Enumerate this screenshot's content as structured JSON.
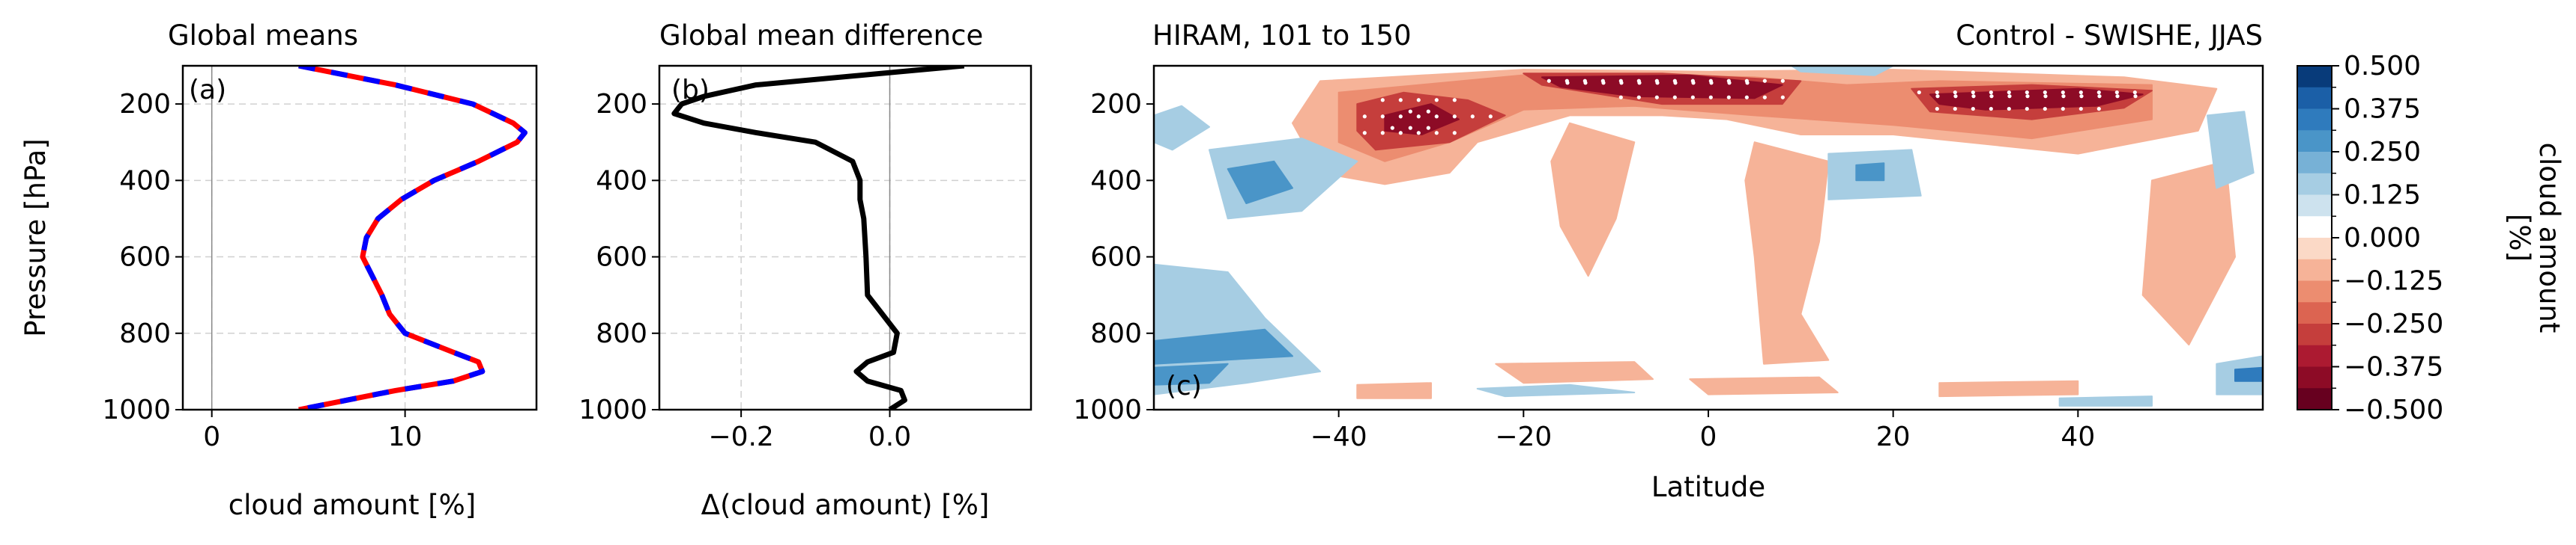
{
  "chart_data": [
    {
      "panel": "(a)",
      "type": "line",
      "title": "Global means",
      "xlabel": "cloud amount [%]",
      "ylabel": "Pressure [hPa]",
      "xlim": [
        -1.5,
        16.8
      ],
      "ylim": [
        1000,
        100
      ],
      "xticks": [
        "0",
        "10"
      ],
      "xtick_values": [
        0,
        10
      ],
      "yticks": [
        "200",
        "400",
        "600",
        "800",
        "1000"
      ],
      "ytick_values": [
        200,
        400,
        600,
        800,
        1000
      ],
      "grid": true,
      "y": [
        100,
        150,
        200,
        250,
        275,
        300,
        350,
        400,
        450,
        500,
        550,
        600,
        650,
        700,
        750,
        800,
        850,
        875,
        900,
        925,
        950,
        975,
        1000
      ],
      "series": [
        {
          "color": "#ff0000",
          "style": "solid",
          "x": [
            4.5,
            9.5,
            13.5,
            15.6,
            16.2,
            15.8,
            13.8,
            11.5,
            9.8,
            8.6,
            8.0,
            7.8,
            8.3,
            8.8,
            9.2,
            10.0,
            12.5,
            13.8,
            14.0,
            12.5,
            9.5,
            7.0,
            4.5
          ]
        },
        {
          "color": "#0000ff",
          "style": "dashed",
          "x": [
            4.5,
            9.5,
            13.5,
            15.6,
            16.2,
            15.8,
            13.8,
            11.5,
            9.8,
            8.6,
            8.0,
            7.8,
            8.3,
            8.8,
            9.2,
            10.0,
            12.5,
            13.8,
            14.0,
            12.5,
            9.5,
            7.0,
            4.5
          ]
        }
      ]
    },
    {
      "panel": "(b)",
      "type": "line",
      "title": "Global mean difference",
      "xlabel": "Δ(cloud amount) [%]",
      "ylabel": "",
      "xlim": [
        -0.31,
        0.19
      ],
      "ylim": [
        1000,
        100
      ],
      "xticks": [
        "−0.2",
        "0.0"
      ],
      "xtick_values": [
        -0.2,
        0.0
      ],
      "yticks": [
        "200",
        "400",
        "600",
        "800",
        "1000"
      ],
      "ytick_values": [
        200,
        400,
        600,
        800,
        1000
      ],
      "grid": true,
      "y": [
        100,
        150,
        180,
        200,
        225,
        250,
        275,
        300,
        350,
        400,
        450,
        500,
        600,
        700,
        750,
        800,
        850,
        875,
        900,
        925,
        950,
        975,
        1000
      ],
      "series": [
        {
          "color": "#000000",
          "style": "solid",
          "x": [
            0.1,
            -0.18,
            -0.25,
            -0.28,
            -0.29,
            -0.25,
            -0.18,
            -0.1,
            -0.05,
            -0.04,
            -0.04,
            -0.035,
            -0.032,
            -0.03,
            -0.01,
            0.01,
            0.005,
            -0.03,
            -0.045,
            -0.03,
            0.015,
            0.02,
            0.0
          ]
        }
      ]
    },
    {
      "panel": "(c)",
      "type": "heatmap",
      "title": "HIRAM, 101 to 150",
      "subtitle": "Control - SWISHE, JJAS",
      "xlabel": "Latitude",
      "ylabel": "",
      "xlim": [
        -60,
        60
      ],
      "ylim": [
        1000,
        100
      ],
      "xticks": [
        "−40",
        "−20",
        "0",
        "20",
        "40"
      ],
      "xtick_values": [
        -40,
        -20,
        0,
        20,
        40
      ],
      "yticks": [
        "200",
        "400",
        "600",
        "800",
        "1000"
      ],
      "ytick_values": [
        200,
        400,
        600,
        800,
        1000
      ],
      "colorbar": {
        "label": "cloud amount [%]",
        "ticks": [
          "0.500",
          "0.375",
          "0.250",
          "0.125",
          "0.000",
          "−0.125",
          "−0.250",
          "−0.375",
          "−0.500"
        ],
        "levels": [
          0.5,
          0.4375,
          0.375,
          0.3125,
          0.25,
          0.1875,
          0.125,
          0.0625,
          0.0,
          -0.0625,
          -0.125,
          -0.1875,
          -0.25,
          -0.3125,
          -0.375,
          -0.4375,
          -0.5
        ],
        "colors": [
          "#083b7a",
          "#1b5fa7",
          "#2f7bbd",
          "#4a95c8",
          "#77b1d6",
          "#a6cde3",
          "#cde2ee",
          "#ffffff",
          "#fbd9c6",
          "#f6b398",
          "#ec8d70",
          "#dc6451",
          "#c53e3c",
          "#ac1a31",
          "#8d0b26",
          "#67001f"
        ]
      },
      "features": [
        {
          "kind": "fill",
          "color": "#f6b398",
          "points": [
            [
              -42,
              140
            ],
            [
              -20,
              110
            ],
            [
              0,
              115
            ],
            [
              20,
              110
            ],
            [
              45,
              130
            ],
            [
              55,
              160
            ],
            [
              53,
              270
            ],
            [
              40,
              330
            ],
            [
              20,
              280
            ],
            [
              10,
              280
            ],
            [
              2,
              240
            ],
            [
              -5,
              230
            ],
            [
              -15,
              230
            ],
            [
              -25,
              300
            ],
            [
              -28,
              380
            ],
            [
              -35,
              410
            ],
            [
              -42,
              380
            ],
            [
              -45,
              250
            ]
          ]
        },
        {
          "kind": "fill",
          "color": "#ec8d70",
          "points": [
            [
              -40,
              170
            ],
            [
              -18,
              120
            ],
            [
              5,
              130
            ],
            [
              15,
              150
            ],
            [
              25,
              140
            ],
            [
              48,
              150
            ],
            [
              48,
              240
            ],
            [
              35,
              290
            ],
            [
              20,
              255
            ],
            [
              5,
              230
            ],
            [
              -8,
              205
            ],
            [
              -20,
              215
            ],
            [
              -28,
              300
            ],
            [
              -35,
              350
            ],
            [
              -40,
              300
            ]
          ]
        },
        {
          "kind": "fill",
          "color": "#c53e3c",
          "points": [
            [
              -38,
              200
            ],
            [
              -33,
              170
            ],
            [
              -26,
              190
            ],
            [
              -22,
              230
            ],
            [
              -28,
              300
            ],
            [
              -36,
              320
            ],
            [
              -38,
              270
            ]
          ]
        },
        {
          "kind": "fill",
          "color": "#c53e3c",
          "points": [
            [
              -20,
              120
            ],
            [
              -5,
              120
            ],
            [
              10,
              140
            ],
            [
              8,
              200
            ],
            [
              -5,
              200
            ],
            [
              -18,
              150
            ]
          ]
        },
        {
          "kind": "fill",
          "color": "#c53e3c",
          "points": [
            [
              22,
              160
            ],
            [
              35,
              150
            ],
            [
              48,
              165
            ],
            [
              45,
              210
            ],
            [
              35,
              240
            ],
            [
              24,
              220
            ]
          ]
        },
        {
          "kind": "fill",
          "color": "#8d0b26",
          "points": [
            [
              -35,
              230
            ],
            [
              -30,
              200
            ],
            [
              -27,
              240
            ],
            [
              -31,
              280
            ],
            [
              -35,
              270
            ]
          ]
        },
        {
          "kind": "fill",
          "color": "#8d0b26",
          "points": [
            [
              -18,
              130
            ],
            [
              -2,
              125
            ],
            [
              8,
              150
            ],
            [
              5,
              185
            ],
            [
              -8,
              180
            ],
            [
              -16,
              155
            ]
          ]
        },
        {
          "kind": "fill",
          "color": "#8d0b26",
          "points": [
            [
              24,
              175
            ],
            [
              40,
              160
            ],
            [
              47,
              175
            ],
            [
              42,
              205
            ],
            [
              30,
              215
            ],
            [
              25,
              200
            ]
          ]
        },
        {
          "kind": "fill",
          "color": "#f6b398",
          "points": [
            [
              5,
              300
            ],
            [
              13,
              350
            ],
            [
              12,
              560
            ],
            [
              10,
              750
            ],
            [
              13,
              870
            ],
            [
              6,
              880
            ],
            [
              5,
              600
            ],
            [
              4,
              400
            ]
          ]
        },
        {
          "kind": "fill",
          "color": "#f6b398",
          "points": [
            [
              -15,
              250
            ],
            [
              -8,
              300
            ],
            [
              -10,
              500
            ],
            [
              -13,
              650
            ],
            [
              -16,
              520
            ],
            [
              -17,
              350
            ]
          ]
        },
        {
          "kind": "fill",
          "color": "#f6b398",
          "points": [
            [
              48,
              400
            ],
            [
              56,
              350
            ],
            [
              57,
              600
            ],
            [
              52,
              830
            ],
            [
              47,
              700
            ]
          ]
        },
        {
          "kind": "fill",
          "color": "#f6b398",
          "points": [
            [
              -23,
              880
            ],
            [
              -8,
              875
            ],
            [
              -6,
              920
            ],
            [
              -20,
              930
            ]
          ]
        },
        {
          "kind": "fill",
          "color": "#f6b398",
          "points": [
            [
              -2,
              920
            ],
            [
              12,
              915
            ],
            [
              14,
              955
            ],
            [
              0,
              960
            ]
          ]
        },
        {
          "kind": "fill",
          "color": "#f6b398",
          "points": [
            [
              -38,
              935
            ],
            [
              -30,
              930
            ],
            [
              -30,
              970
            ],
            [
              -38,
              970
            ]
          ]
        },
        {
          "kind": "fill",
          "color": "#f6b398",
          "points": [
            [
              25,
              930
            ],
            [
              40,
              925
            ],
            [
              40,
              960
            ],
            [
              25,
              965
            ]
          ]
        },
        {
          "kind": "fill",
          "color": "#a6cde3",
          "points": [
            [
              -60,
              620
            ],
            [
              -52,
              640
            ],
            [
              -48,
              760
            ],
            [
              -42,
              900
            ],
            [
              -50,
              930
            ],
            [
              -60,
              960
            ]
          ]
        },
        {
          "kind": "fill",
          "color": "#a6cde3",
          "points": [
            [
              -60,
              230
            ],
            [
              -57,
              205
            ],
            [
              -54,
              260
            ],
            [
              -58,
              320
            ],
            [
              -60,
              300
            ]
          ]
        },
        {
          "kind": "fill",
          "color": "#a6cde3",
          "points": [
            [
              -54,
              320
            ],
            [
              -44,
              290
            ],
            [
              -38,
              350
            ],
            [
              -44,
              480
            ],
            [
              -52,
              500
            ]
          ]
        },
        {
          "kind": "fill",
          "color": "#4a95c8",
          "points": [
            [
              -52,
              370
            ],
            [
              -47,
              350
            ],
            [
              -45,
              420
            ],
            [
              -50,
              460
            ]
          ]
        },
        {
          "kind": "fill",
          "color": "#4a95c8",
          "points": [
            [
              -60,
              820
            ],
            [
              -48,
              790
            ],
            [
              -45,
              860
            ],
            [
              -60,
              880
            ]
          ]
        },
        {
          "kind": "fill",
          "color": "#4a95c8",
          "points": [
            [
              -60,
              890
            ],
            [
              -52,
              880
            ],
            [
              -54,
              930
            ],
            [
              -60,
              935
            ]
          ]
        },
        {
          "kind": "fill",
          "color": "#a6cde3",
          "points": [
            [
              13,
              330
            ],
            [
              22,
              320
            ],
            [
              23,
              440
            ],
            [
              13,
              450
            ]
          ]
        },
        {
          "kind": "fill",
          "color": "#4a95c8",
          "points": [
            [
              16,
              360
            ],
            [
              19,
              355
            ],
            [
              19,
              400
            ],
            [
              16,
              400
            ]
          ]
        },
        {
          "kind": "fill",
          "color": "#a6cde3",
          "points": [
            [
              54,
              230
            ],
            [
              58,
              220
            ],
            [
              59,
              380
            ],
            [
              55,
              420
            ]
          ]
        },
        {
          "kind": "fill",
          "color": "#a6cde3",
          "points": [
            [
              55,
              880
            ],
            [
              60,
              860
            ],
            [
              60,
              960
            ],
            [
              55,
              960
            ]
          ]
        },
        {
          "kind": "fill",
          "color": "#2f7bbd",
          "points": [
            [
              57,
              895
            ],
            [
              60,
              890
            ],
            [
              60,
              925
            ],
            [
              57,
              925
            ]
          ]
        },
        {
          "kind": "fill",
          "color": "#a6cde3",
          "points": [
            [
              -25,
              945
            ],
            [
              -15,
              935
            ],
            [
              -8,
              955
            ],
            [
              -22,
              965
            ]
          ]
        },
        {
          "kind": "fill",
          "color": "#a6cde3",
          "points": [
            [
              9,
              100
            ],
            [
              20,
              100
            ],
            [
              18,
              125
            ],
            [
              10,
              115
            ]
          ]
        },
        {
          "kind": "fill",
          "color": "#a6cde3",
          "points": [
            [
              38,
              970
            ],
            [
              48,
              965
            ],
            [
              48,
              990
            ],
            [
              38,
              990
            ]
          ]
        }
      ]
    }
  ]
}
